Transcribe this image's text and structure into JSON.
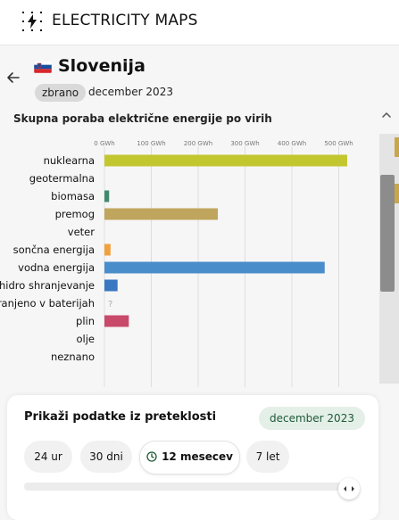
{
  "header": {
    "brand": "ELECTRICITY MAPS"
  },
  "zone": {
    "name": "Slovenija",
    "status_badge": "zbrano",
    "date": "december 2023"
  },
  "chart_title": "Skupna poraba električne energije po virih",
  "colors": {
    "accent": "#1d5a36",
    "nuclear": "#c3c72f",
    "biomass": "#3f8a6e",
    "coal": "#bfa55e",
    "solar": "#f2a03d",
    "hydro": "#4a8dcb",
    "hydro_storage": "#3a77c2",
    "gas": "#c9496a"
  },
  "chart_data": {
    "type": "bar",
    "orientation": "horizontal",
    "title": "Skupna poraba električne energije po virih",
    "categories": [
      "nuklearna",
      "geotermalna",
      "biomasa",
      "premog",
      "veter",
      "sončna energija",
      "vodna energija",
      "hidro shranjevanje",
      "shranjeno v baterijah",
      "plin",
      "olje",
      "neznano"
    ],
    "values": [
      518,
      0,
      10,
      242,
      0,
      13,
      470,
      28,
      null,
      52,
      0,
      0
    ],
    "colors": [
      "#c3c72f",
      null,
      "#3f8a6e",
      "#bfa55e",
      null,
      "#f2a03d",
      "#4a8dcb",
      "#3a77c2",
      null,
      "#c9496a",
      null,
      null
    ],
    "unknown_marker": "?",
    "ticks": [
      "0 GWh",
      "100 GWh",
      "200 GWh",
      "300 GWh",
      "400 GWh",
      "500 GWh"
    ],
    "xlim": [
      0,
      520
    ],
    "unit": "GWh",
    "grid": true
  },
  "history_panel": {
    "title": "Prikaži podatke iz preteklosti",
    "selected_date": "december 2023",
    "ranges": [
      {
        "label": "24 ur",
        "active": false
      },
      {
        "label": "30 dni",
        "active": false
      },
      {
        "label": "12 mesecev",
        "active": true
      },
      {
        "label": "7 let",
        "active": false
      }
    ]
  }
}
